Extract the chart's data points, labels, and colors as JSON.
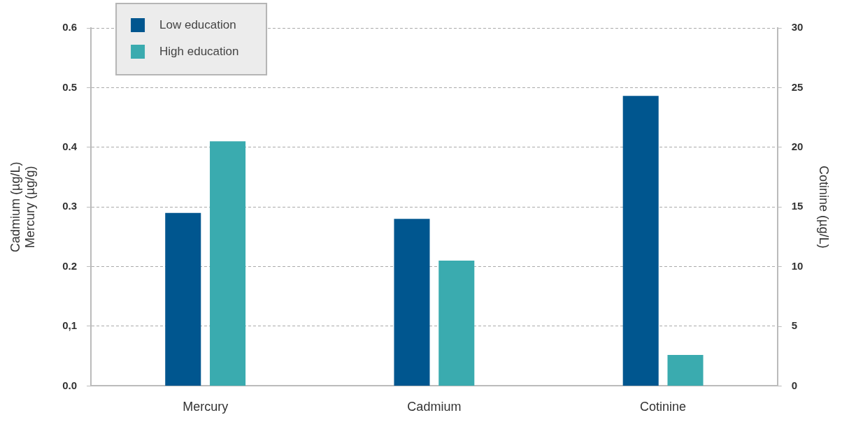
{
  "chart_data": {
    "type": "bar",
    "categories": [
      "Mercury",
      "Cadmium",
      "Cotinine"
    ],
    "ylabel": "Cadmium (µg/L)\nMercury (µg/g)",
    "y2label": "Cotinine (µg/L)",
    "series": [
      {
        "name": "Low education",
        "color": "#00568f",
        "values": [
          0.29,
          0.28,
          null
        ]
      },
      {
        "name": "High education",
        "color": "#3aabaf",
        "values": [
          0.41,
          0.21,
          null
        ]
      },
      {
        "color": "#00568f",
        "axis": "y2",
        "values": [
          null,
          null,
          24.3
        ]
      },
      {
        "color": "#3aabaf",
        "axis": "y2",
        "values": [
          null,
          null,
          2.6
        ]
      }
    ],
    "ylim": [
      0,
      0.6
    ],
    "yticks": [
      {
        "value": 0,
        "label": "0.0"
      },
      {
        "value": 0.1,
        "label": "0,1"
      },
      {
        "value": 0.2,
        "label": "0.2"
      },
      {
        "value": 0.3,
        "label": "0.3"
      },
      {
        "value": 0.4,
        "label": "0.4"
      },
      {
        "value": 0.5,
        "label": "0.5"
      },
      {
        "value": 0.6,
        "label": "0.6"
      }
    ],
    "y2lim": [
      0,
      30
    ],
    "y2ticks": [
      0,
      5,
      10,
      15,
      20,
      25,
      30
    ],
    "grid": "y",
    "legend": "top left"
  }
}
